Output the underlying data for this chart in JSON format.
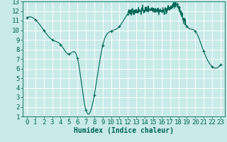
{
  "title": "",
  "xlabel": "Humidex (Indice chaleur)",
  "ylabel": "",
  "bg_color": "#c8eae8",
  "grid_color": "#aed8d4",
  "line_color": "#006655",
  "marker_color": "#006655",
  "xlim": [
    -0.5,
    23.5
  ],
  "ylim": [
    1,
    13
  ],
  "xticks": [
    0,
    1,
    2,
    3,
    4,
    5,
    6,
    7,
    8,
    9,
    10,
    11,
    12,
    13,
    14,
    15,
    16,
    17,
    18,
    19,
    20,
    21,
    22,
    23
  ],
  "yticks": [
    1,
    2,
    3,
    4,
    5,
    6,
    7,
    8,
    9,
    10,
    11,
    12,
    13
  ],
  "key_points": [
    [
      0,
      11.3
    ],
    [
      1,
      11.1
    ],
    [
      2,
      10.0
    ],
    [
      3,
      9.0
    ],
    [
      4,
      8.5
    ],
    [
      5,
      7.5
    ],
    [
      6,
      7.1
    ],
    [
      7,
      1.7
    ],
    [
      8,
      3.2
    ],
    [
      9,
      8.4
    ],
    [
      10,
      9.9
    ],
    [
      11,
      10.4
    ],
    [
      12,
      11.7
    ],
    [
      13,
      12.0
    ],
    [
      14,
      12.1
    ],
    [
      15,
      12.2
    ],
    [
      16,
      12.0
    ],
    [
      17,
      12.3
    ],
    [
      18,
      12.4
    ],
    [
      19,
      10.4
    ],
    [
      20,
      9.9
    ],
    [
      21,
      7.8
    ],
    [
      22,
      6.2
    ],
    [
      23,
      6.4
    ]
  ],
  "noisy_start": 12,
  "noisy_end": 19,
  "noise_std": 0.18,
  "xlabel_fontsize": 7,
  "tick_fontsize": 6.5
}
